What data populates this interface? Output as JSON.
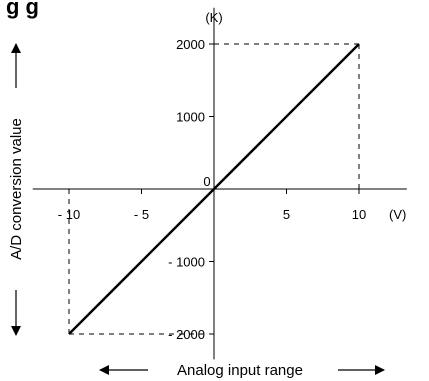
{
  "heading": "g     g",
  "chart_data": {
    "type": "line",
    "xlabel": "Analog input range",
    "ylabel": "A/D conversion value",
    "x_unit": "(V)",
    "y_unit": "(K)",
    "xlim": [
      -12.5,
      13.3
    ],
    "ylim": [
      -2350,
      2500
    ],
    "x_ticks": [
      -10,
      -5,
      5,
      10
    ],
    "x_tick_labels": [
      "- 10",
      "- 5",
      "5",
      "10"
    ],
    "y_ticks": [
      2000,
      1000,
      -1000,
      -2000
    ],
    "y_tick_labels": [
      "2000",
      "1000",
      "- 1000",
      "- 2000"
    ],
    "origin_label": "0",
    "series": [
      {
        "x": [
          -10,
          10
        ],
        "y": [
          -2000,
          2000
        ]
      }
    ],
    "guides": [
      {
        "x": 10,
        "y": 2000
      },
      {
        "x": -10,
        "y": -2000
      }
    ]
  }
}
